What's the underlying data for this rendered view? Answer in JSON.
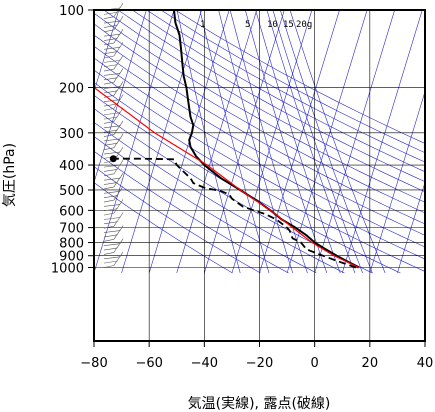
{
  "chart_data": {
    "type": "line",
    "xlabel": "気温(実線), 露点(破線)",
    "ylabel": "気圧(hPa)",
    "xlim": [
      -80,
      40
    ],
    "ylim": [
      1050,
      100
    ],
    "y_scale": "log",
    "x_ticks": [
      "−80",
      "−60",
      "−40",
      "−20",
      "0",
      "20",
      "40"
    ],
    "x_tick_values": [
      -80,
      -60,
      -40,
      -20,
      0,
      20,
      40
    ],
    "y_ticks": [
      "100",
      "200",
      "300",
      "400",
      "500",
      "600",
      "700",
      "800",
      "900",
      "1000"
    ],
    "y_tick_values": [
      100,
      200,
      300,
      400,
      500,
      600,
      700,
      800,
      900,
      1000
    ],
    "mixing_ratio_labels": [
      "1",
      "5",
      "10",
      "15",
      "20g"
    ],
    "colors": {
      "temperature": "#000000",
      "dewpoint": "#000000",
      "parcel": "#ff0000",
      "isopleths": "#2a2ad0",
      "grid": "#000000"
    },
    "grid": true,
    "series": [
      {
        "style": "solid",
        "points": [
          {
            "p": 1000,
            "t": 16
          },
          {
            "p": 950,
            "t": 12
          },
          {
            "p": 900,
            "t": 8
          },
          {
            "p": 850,
            "t": 4
          },
          {
            "p": 800,
            "t": 0
          },
          {
            "p": 750,
            "t": -3
          },
          {
            "p": 700,
            "t": -7
          },
          {
            "p": 650,
            "t": -12
          },
          {
            "p": 600,
            "t": -16
          },
          {
            "p": 550,
            "t": -21
          },
          {
            "p": 500,
            "t": -27
          },
          {
            "p": 450,
            "t": -34
          },
          {
            "p": 400,
            "t": -40
          },
          {
            "p": 370,
            "t": -43
          },
          {
            "p": 340,
            "t": -45
          },
          {
            "p": 320,
            "t": -45.5
          },
          {
            "p": 300,
            "t": -44.5
          },
          {
            "p": 280,
            "t": -44
          },
          {
            "p": 260,
            "t": -45
          },
          {
            "p": 240,
            "t": -45.5
          },
          {
            "p": 220,
            "t": -46
          },
          {
            "p": 200,
            "t": -46.5
          },
          {
            "p": 180,
            "t": -47.5
          },
          {
            "p": 160,
            "t": -48
          },
          {
            "p": 140,
            "t": -48.5
          },
          {
            "p": 125,
            "t": -49
          },
          {
            "p": 112,
            "t": -50.5
          },
          {
            "p": 100,
            "t": -51
          }
        ]
      },
      {
        "style": "dashed",
        "points": [
          {
            "p": 1000,
            "t": 15
          },
          {
            "p": 950,
            "t": 9
          },
          {
            "p": 900,
            "t": 3
          },
          {
            "p": 850,
            "t": -3
          },
          {
            "p": 800,
            "t": -5
          },
          {
            "p": 770,
            "t": -8
          },
          {
            "p": 750,
            "t": -8.5
          },
          {
            "p": 720,
            "t": -9
          },
          {
            "p": 700,
            "t": -10
          },
          {
            "p": 650,
            "t": -14
          },
          {
            "p": 620,
            "t": -18
          },
          {
            "p": 600,
            "t": -22
          },
          {
            "p": 580,
            "t": -26
          },
          {
            "p": 560,
            "t": -28
          },
          {
            "p": 540,
            "t": -30
          },
          {
            "p": 520,
            "t": -31
          },
          {
            "p": 505,
            "t": -34
          },
          {
            "p": 490,
            "t": -40
          },
          {
            "p": 470,
            "t": -44
          },
          {
            "p": 450,
            "t": -45
          },
          {
            "p": 420,
            "t": -48
          },
          {
            "p": 400,
            "t": -50
          },
          {
            "p": 380,
            "t": -51
          },
          {
            "p": 378,
            "t": -62
          },
          {
            "p": 378,
            "t": -73
          }
        ]
      },
      {
        "style": "parcel",
        "points": [
          {
            "p": 1000,
            "t": 16
          },
          {
            "p": 900,
            "t": 7
          },
          {
            "p": 800,
            "t": -1
          },
          {
            "p": 700,
            "t": -8
          },
          {
            "p": 600,
            "t": -16
          },
          {
            "p": 500,
            "t": -27
          },
          {
            "p": 400,
            "t": -39
          },
          {
            "p": 300,
            "t": -58
          },
          {
            "p": 200,
            "t": -80
          }
        ]
      }
    ]
  }
}
